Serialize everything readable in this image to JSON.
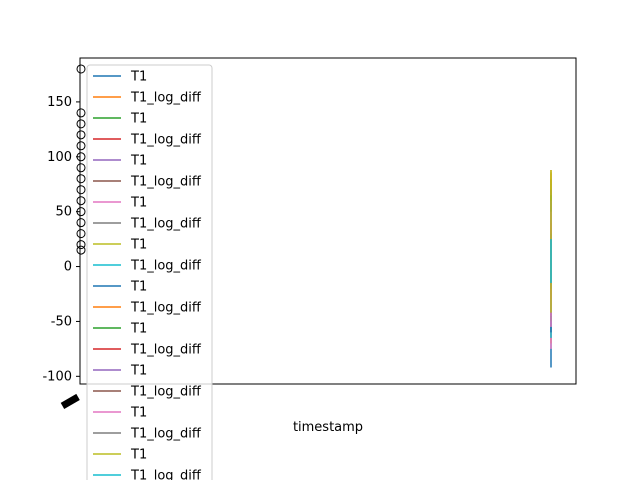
{
  "chart_data": {
    "type": "line",
    "title": "",
    "xlabel": "timestamp",
    "ylabel": "",
    "ylim": [
      -107,
      190
    ],
    "yticks": [
      -100,
      -50,
      0,
      50,
      100,
      150
    ],
    "grid": false,
    "legend_position": "upper left",
    "series": [
      {
        "name": "T1",
        "color": "#1f77b4",
        "values": [
          -92,
          75
        ]
      },
      {
        "name": "T1_log_diff",
        "color": "#ff7f0e",
        "values": [
          -70,
          88
        ]
      },
      {
        "name": "T1",
        "color": "#2ca02c",
        "values": [
          -60,
          80
        ]
      },
      {
        "name": "T1_log_diff",
        "color": "#d62728",
        "values": [
          -55,
          60
        ]
      },
      {
        "name": "T1",
        "color": "#9467bd",
        "values": [
          -50,
          55
        ]
      },
      {
        "name": "T1_log_diff",
        "color": "#8c564b",
        "values": [
          -45,
          50
        ]
      },
      {
        "name": "T1",
        "color": "#e377c2",
        "values": [
          -75,
          62
        ]
      },
      {
        "name": "T1_log_diff",
        "color": "#7f7f7f",
        "values": [
          -40,
          45
        ]
      },
      {
        "name": "T1",
        "color": "#bcbd22",
        "values": [
          -48,
          86
        ]
      },
      {
        "name": "T1_log_diff",
        "color": "#17becf",
        "values": [
          -65,
          55
        ]
      },
      {
        "name": "T1",
        "color": "#1f77b4",
        "values": [
          -60,
          70
        ]
      },
      {
        "name": "T1_log_diff",
        "color": "#ff7f0e",
        "values": [
          -35,
          85
        ]
      },
      {
        "name": "T1",
        "color": "#2ca02c",
        "values": [
          -50,
          65
        ]
      },
      {
        "name": "T1_log_diff",
        "color": "#d62728",
        "values": [
          -30,
          40
        ]
      },
      {
        "name": "T1",
        "color": "#9467bd",
        "values": [
          -45,
          60
        ]
      },
      {
        "name": "T1_log_diff",
        "color": "#8c564b",
        "values": [
          -25,
          35
        ]
      },
      {
        "name": "T1",
        "color": "#e377c2",
        "values": [
          -55,
          50
        ]
      },
      {
        "name": "T1_log_diff",
        "color": "#7f7f7f",
        "values": [
          -20,
          30
        ]
      },
      {
        "name": "T1",
        "color": "#bcbd22",
        "values": [
          -42,
          88
        ]
      },
      {
        "name": "T1_log_diff",
        "color": "#17becf",
        "values": [
          -15,
          25
        ]
      }
    ],
    "outlier_markers": [
      180,
      140,
      130,
      120,
      110,
      100,
      90,
      80,
      70,
      60,
      50,
      40,
      30,
      20,
      15
    ]
  }
}
